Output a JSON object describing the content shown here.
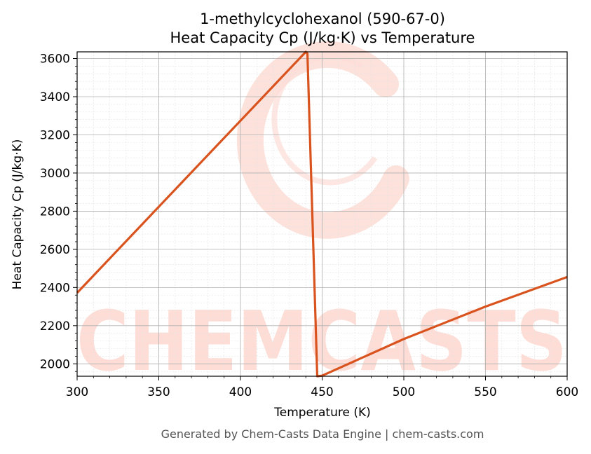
{
  "chart_data": {
    "type": "line",
    "title_line1": "1-methylcyclohexanol (590-67-0)",
    "title_line2": "Heat Capacity Cp (J/kg·K) vs Temperature",
    "xlabel": "Temperature (K)",
    "ylabel": "Heat Capacity Cp (J/kg·K)",
    "xlim": [
      300,
      600
    ],
    "ylim": [
      1935,
      3635
    ],
    "x_ticks": [
      300,
      350,
      400,
      450,
      500,
      550,
      600
    ],
    "y_ticks": [
      2000,
      2200,
      2400,
      2600,
      2800,
      3000,
      3200,
      3400,
      3600
    ],
    "grid": true,
    "line_color": "#d9531e",
    "series": [
      {
        "x": [
          300,
          440,
          441,
          447,
          450,
          500,
          550,
          600
        ],
        "y": [
          2372,
          3635,
          3625,
          1935,
          1938,
          2130,
          2300,
          2455
        ]
      }
    ],
    "watermark_text": "CHEMCASTS",
    "watermark_color": "#fdddd6"
  },
  "footer": "Generated by Chem-Casts Data Engine | chem-casts.com"
}
